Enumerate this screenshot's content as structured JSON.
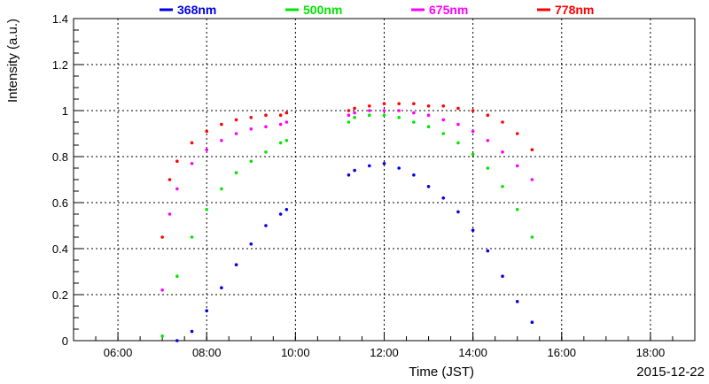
{
  "chart_data": {
    "type": "scatter",
    "xlabel": "Time (JST)",
    "ylabel": "Intensity (a.u.)",
    "date_label": "2015-12-22",
    "xlim": [
      "05:00",
      "19:00"
    ],
    "ylim": [
      0,
      1.4
    ],
    "x_ticks": [
      "06:00",
      "08:00",
      "10:00",
      "12:00",
      "14:00",
      "16:00",
      "18:00"
    ],
    "y_ticks": [
      "0",
      "0.2",
      "0.4",
      "0.6",
      "0.8",
      "1",
      "1.2",
      "1.4"
    ],
    "grid": true,
    "legend_position": "top",
    "series": [
      {
        "name": "368nm",
        "color": "#0000e6",
        "x": [
          "07:20",
          "07:40",
          "08:00",
          "08:20",
          "08:40",
          "09:00",
          "09:20",
          "09:40",
          "09:48",
          "11:12",
          "11:20",
          "11:40",
          "12:00",
          "12:20",
          "12:40",
          "13:00",
          "13:20",
          "13:40",
          "14:00",
          "14:20",
          "14:40",
          "15:00",
          "15:20"
        ],
        "values": [
          0.0,
          0.04,
          0.13,
          0.23,
          0.33,
          0.42,
          0.5,
          0.55,
          0.57,
          0.72,
          0.74,
          0.76,
          0.77,
          0.75,
          0.72,
          0.67,
          0.62,
          0.56,
          0.48,
          0.39,
          0.28,
          0.17,
          0.08
        ]
      },
      {
        "name": "500nm",
        "color": "#00e600",
        "x": [
          "07:00",
          "07:20",
          "07:40",
          "08:00",
          "08:20",
          "08:40",
          "09:00",
          "09:20",
          "09:40",
          "09:48",
          "11:12",
          "11:20",
          "11:40",
          "12:00",
          "12:20",
          "12:40",
          "13:00",
          "13:20",
          "13:40",
          "14:00",
          "14:20",
          "14:40",
          "15:00",
          "15:20"
        ],
        "values": [
          0.02,
          0.28,
          0.45,
          0.57,
          0.66,
          0.73,
          0.78,
          0.82,
          0.86,
          0.87,
          0.95,
          0.97,
          0.98,
          0.98,
          0.97,
          0.95,
          0.93,
          0.9,
          0.86,
          0.81,
          0.75,
          0.67,
          0.57,
          0.45
        ]
      },
      {
        "name": "675nm",
        "color": "#ff00ff",
        "x": [
          "07:00",
          "07:10",
          "07:20",
          "07:40",
          "08:00",
          "08:20",
          "08:40",
          "09:00",
          "09:20",
          "09:40",
          "09:48",
          "11:12",
          "11:20",
          "11:40",
          "12:00",
          "12:20",
          "12:40",
          "13:00",
          "13:20",
          "13:40",
          "14:00",
          "14:20",
          "14:40",
          "15:00",
          "15:20"
        ],
        "values": [
          0.22,
          0.55,
          0.66,
          0.77,
          0.83,
          0.87,
          0.9,
          0.92,
          0.93,
          0.94,
          0.95,
          0.98,
          0.99,
          1.0,
          1.0,
          1.0,
          0.99,
          0.98,
          0.96,
          0.94,
          0.91,
          0.87,
          0.82,
          0.76,
          0.7
        ]
      },
      {
        "name": "778nm",
        "color": "#ff0000",
        "x": [
          "07:00",
          "07:10",
          "07:20",
          "07:40",
          "08:00",
          "08:20",
          "08:40",
          "09:00",
          "09:20",
          "09:40",
          "09:48",
          "11:12",
          "11:20",
          "11:40",
          "12:00",
          "12:20",
          "12:40",
          "13:00",
          "13:20",
          "13:40",
          "14:00",
          "14:20",
          "14:40",
          "15:00",
          "15:20"
        ],
        "values": [
          0.45,
          0.7,
          0.78,
          0.86,
          0.91,
          0.94,
          0.96,
          0.97,
          0.98,
          0.98,
          0.99,
          1.0,
          1.01,
          1.02,
          1.03,
          1.03,
          1.03,
          1.02,
          1.02,
          1.01,
          1.0,
          0.98,
          0.95,
          0.9,
          0.83
        ]
      }
    ]
  }
}
